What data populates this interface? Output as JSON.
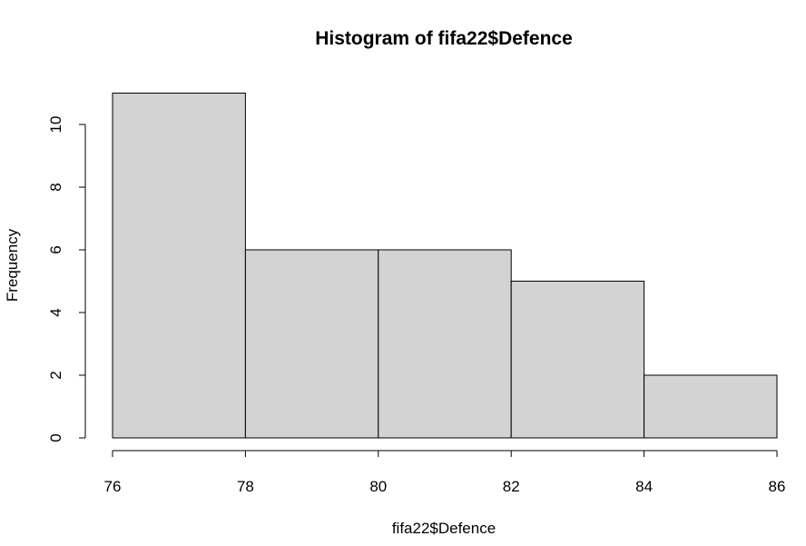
{
  "chart_data": {
    "type": "bar",
    "title": "Histogram of fifa22$Defence",
    "xlabel": "fifa22$Defence",
    "ylabel": "Frequency",
    "bins": [
      {
        "start": 76,
        "end": 78,
        "count": 11
      },
      {
        "start": 78,
        "end": 80,
        "count": 6
      },
      {
        "start": 80,
        "end": 82,
        "count": 6
      },
      {
        "start": 82,
        "end": 84,
        "count": 5
      },
      {
        "start": 84,
        "end": 86,
        "count": 2
      }
    ],
    "xlim": [
      76,
      86
    ],
    "ylim": [
      0,
      11
    ],
    "x_ticks": [
      76,
      78,
      80,
      82,
      84,
      86
    ],
    "y_ticks": [
      0,
      2,
      4,
      6,
      8,
      10
    ],
    "bar_fill": "#d3d3d3",
    "grid": false
  }
}
